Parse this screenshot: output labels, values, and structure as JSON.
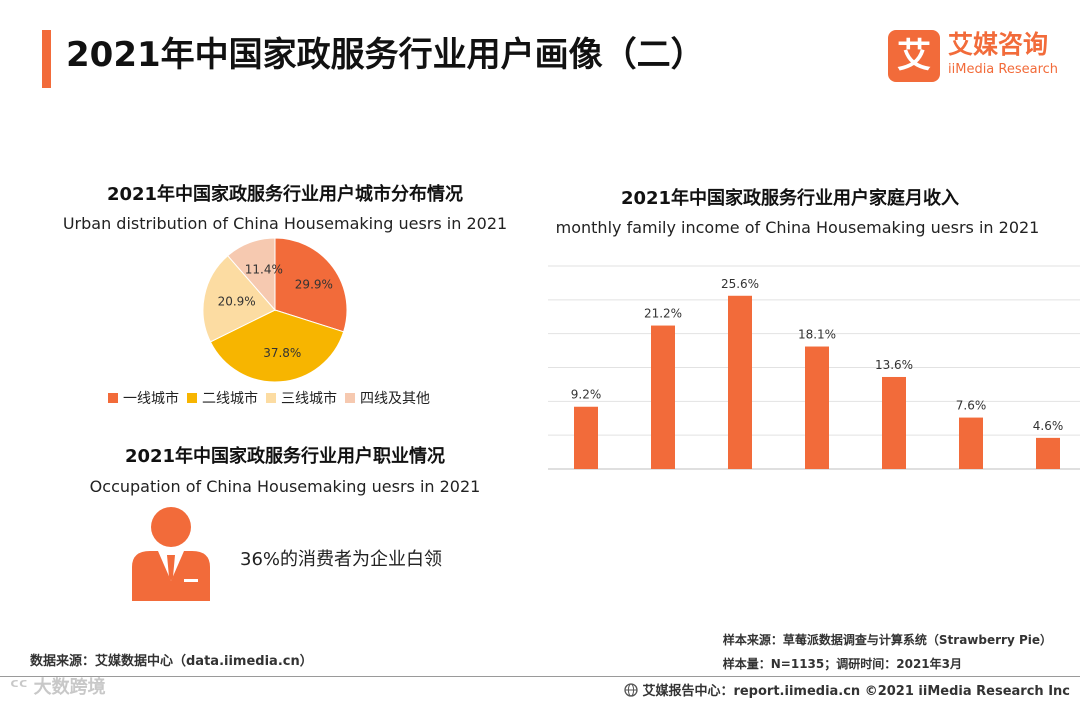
{
  "header": {
    "title": "2021年中国家政服务行业用户画像（二）",
    "logo_mark": "艾",
    "logo_cn": "艾媒咨询",
    "logo_en": "iiMedia Research"
  },
  "city_section": {
    "title": "2021年中国家政服务行业用户城市分布情况",
    "subtitle": "Urban distribution of  China Housemaking uesrs  in 2021"
  },
  "occupation_section": {
    "title": "2021年中国家政服务行业用户职业情况",
    "subtitle": "Occupation of  China Housemaking uesrs  in 2021",
    "text": "36%的消费者为企业白领",
    "icon": "businessman-icon"
  },
  "income_section": {
    "title": "2021年中国家政服务行业用户家庭月收入",
    "subtitle": "monthly family income of  China Housemaking uesrs  in 2021"
  },
  "chart_data": [
    {
      "type": "pie",
      "categories": [
        "一线城市",
        "二线城市",
        "三线城市",
        "四线及其他"
      ],
      "values": [
        29.9,
        37.8,
        20.9,
        11.4
      ],
      "labels": [
        "29.9%",
        "37.8%",
        "20.9%",
        "11.4%"
      ],
      "colors": [
        "#f26b3a",
        "#f7b500",
        "#fcdca2",
        "#f6c9b0"
      ],
      "legend": "bottom"
    },
    {
      "type": "bar",
      "categories": [
        "",
        "",
        "",
        "",
        "",
        "",
        ""
      ],
      "values": [
        9.2,
        21.2,
        25.6,
        18.1,
        13.6,
        7.6,
        4.6
      ],
      "labels": [
        "9.2%",
        "21.2%",
        "25.6%",
        "18.1%",
        "13.6%",
        "7.6%",
        "4.6%"
      ],
      "color": "#f26b3a",
      "ylim": [
        0,
        30
      ],
      "grid": true
    }
  ],
  "footer": {
    "data_source": "数据来源：艾媒数据中心（data.iimedia.cn）",
    "sample_source": "样本来源：草莓派数据调查与计算系统（Strawberry Pie）",
    "sample_size": "样本量：N=1135；调研时间：2021年3月",
    "report_center": "艾媒报告中心：report.iimedia.cn   ©2021  iiMedia Research  Inc",
    "watermark": "ᑦᑦ 大数跨境"
  }
}
